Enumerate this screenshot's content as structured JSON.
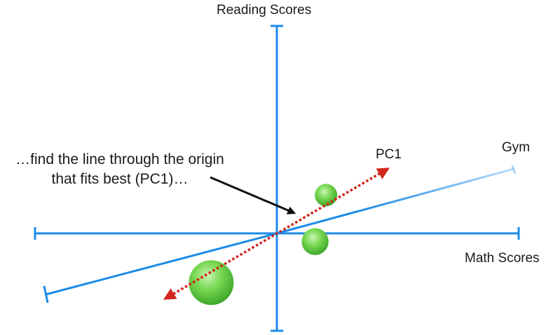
{
  "labels": {
    "y_axis": "Reading Scores",
    "x_axis": "Math Scores",
    "gym": "Gym",
    "pc1": "PC1"
  },
  "annotation": {
    "line1": "…find the line through the origin",
    "line2": "that fits best (PC1)…"
  },
  "colors": {
    "axis": "#1c8be8",
    "pc1_arrow": "#d0261c",
    "points": "#5ccf35",
    "text": "#1a1a1a"
  },
  "chart_data": {
    "type": "scatter",
    "title": "",
    "xlabel": "Math Scores",
    "ylabel": "Reading Scores",
    "points": [
      {
        "x": 1.8,
        "y": 1.4,
        "weight": 1.0
      },
      {
        "x": 1.4,
        "y": -0.3,
        "weight": 1.2
      },
      {
        "x": -2.4,
        "y": -1.8,
        "weight": 2.0
      }
    ],
    "gym_axis": {
      "label": "Gym",
      "direction": [
        1,
        0.28
      ]
    },
    "pc1": {
      "label": "PC1",
      "direction": [
        1,
        0.77
      ]
    }
  }
}
